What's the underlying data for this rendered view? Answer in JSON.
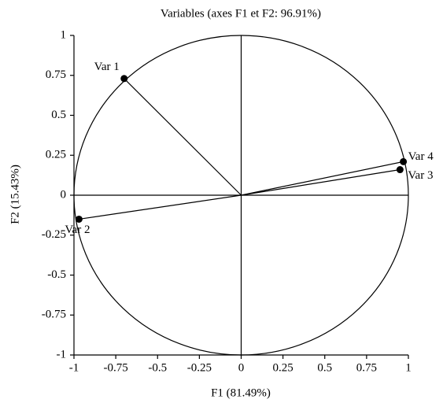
{
  "chart_data": {
    "type": "scatter",
    "title": "Variables (axes F1 et F2: 96.91%)",
    "x_label": "F1 (81.49%)",
    "y_label": "F2 (15.43%)",
    "points": [
      {
        "label": "Var 1",
        "x": -0.7,
        "y": 0.73
      },
      {
        "label": "Var 2",
        "x": -0.97,
        "y": -0.15
      },
      {
        "label": "Var 3",
        "x": 0.95,
        "y": 0.16
      },
      {
        "label": "Var 4",
        "x": 0.97,
        "y": 0.21
      }
    ],
    "color": "#000000",
    "xlim": [
      -1,
      1
    ],
    "ylim": [
      -1,
      1
    ],
    "xticks": [
      -1,
      -0.75,
      -0.5,
      -0.25,
      0,
      0.25,
      0.5,
      0.75,
      1
    ],
    "yticks": [
      -1,
      -0.75,
      -0.5,
      -0.25,
      0,
      0.25,
      0.5,
      0.75,
      1
    ],
    "unit_circle": true
  }
}
